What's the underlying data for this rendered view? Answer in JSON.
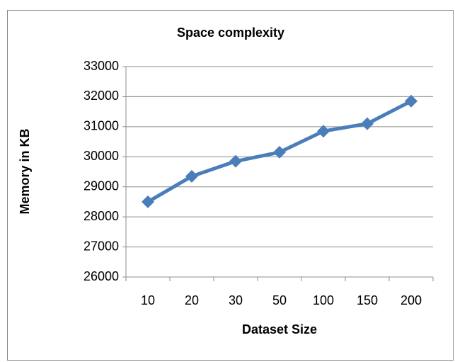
{
  "chart_data": {
    "type": "line",
    "title": "Space complexity",
    "x_label": "Dataset Size",
    "y_label": "Memory in KB",
    "categories": [
      "10",
      "20",
      "30",
      "50",
      "100",
      "150",
      "200"
    ],
    "series": [
      {
        "name": "Memory",
        "color": "#4a7ebb",
        "values": [
          28500,
          29350,
          29850,
          30150,
          30850,
          31100,
          31850
        ]
      }
    ],
    "ylim": [
      26000,
      33000
    ],
    "yticks": [
      26000,
      27000,
      28000,
      29000,
      30000,
      31000,
      32000,
      33000
    ],
    "grid": true,
    "legend": false
  }
}
